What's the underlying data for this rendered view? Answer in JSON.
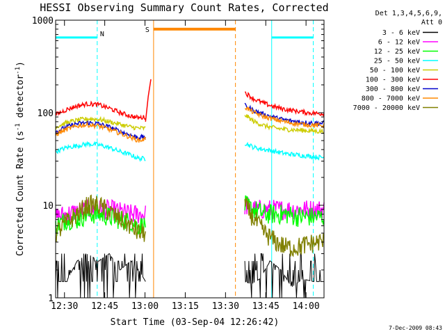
{
  "chart_data": {
    "type": "line",
    "title": "HESSI Observing Summary Count Rates, Corrected",
    "xlabel": "Start Time (03-Sep-04 12:26:42)",
    "ylabel_prefix": "Corrected Count Rate (s",
    "ylabel_sup1": "-1",
    "ylabel_mid": " detector",
    "ylabel_sup2": "-1",
    "ylabel_suffix": ")",
    "y_scale": "log",
    "ylim": [
      1,
      1000
    ],
    "xlim_minutes": [
      0,
      100
    ],
    "x_ticks": [
      {
        "label": "12:30",
        "minute": 3.3
      },
      {
        "label": "12:45",
        "minute": 18.3
      },
      {
        "label": "13:00",
        "minute": 33.3
      },
      {
        "label": "13:15",
        "minute": 48.3
      },
      {
        "label": "13:30",
        "minute": 63.3
      },
      {
        "label": "13:45",
        "minute": 78.3
      },
      {
        "label": "14:00",
        "minute": 93.3
      }
    ],
    "y_ticks": [
      {
        "label": "1",
        "value": 1
      },
      {
        "label": "10",
        "value": 10
      },
      {
        "label": "100",
        "value": 100
      },
      {
        "label": "1000",
        "value": 1000
      }
    ],
    "legend_header": [
      "Det 1,3,4,5,6,9,",
      "Att 0"
    ],
    "series": [
      {
        "name": "3 - 6 keV",
        "color": "#000000",
        "seg1": {
          "x": [
            0,
            4,
            8,
            12,
            16,
            20,
            24,
            28,
            31,
            33.5
          ],
          "y": [
            1.5,
            1.5,
            2.5,
            3,
            2.5,
            3,
            2,
            2.5,
            2,
            1.5
          ]
        },
        "seg2": {
          "x": [
            70.5,
            73,
            76,
            80,
            84,
            88,
            92,
            96,
            100
          ],
          "y": [
            1.5,
            1.4,
            1.6,
            2.5,
            2,
            1.3,
            1.6,
            1.5,
            1.5
          ]
        }
      },
      {
        "name": "6 - 12 keV",
        "color": "#ff00ff",
        "seg1": {
          "x": [
            0,
            4,
            8,
            12,
            16,
            20,
            24,
            28,
            31,
            33.5
          ],
          "y": [
            7.5,
            8,
            8.5,
            9,
            9,
            9,
            8.5,
            8,
            8,
            8
          ]
        },
        "seg2": {
          "x": [
            70.5,
            74,
            78,
            82,
            86,
            90,
            94,
            98,
            100
          ],
          "y": [
            10,
            9,
            9,
            9,
            9,
            9,
            9,
            9,
            9
          ]
        }
      },
      {
        "name": "12 - 25 keV",
        "color": "#00ff00",
        "seg1": {
          "x": [
            0,
            4,
            8,
            12,
            16,
            20,
            24,
            28,
            31,
            33.5
          ],
          "y": [
            6,
            7,
            7,
            8,
            8,
            7.5,
            7,
            6.5,
            6,
            6
          ]
        },
        "seg2": {
          "x": [
            70.5,
            74,
            78,
            82,
            86,
            90,
            94,
            98,
            100
          ],
          "y": [
            10,
            9,
            8,
            8,
            8,
            7.5,
            7.5,
            7.5,
            7.5
          ]
        }
      },
      {
        "name": "25 - 50 keV",
        "color": "#00ffff",
        "seg1": {
          "x": [
            0,
            4,
            8,
            12,
            16,
            20,
            24,
            28,
            31,
            33.5
          ],
          "y": [
            38,
            42,
            44,
            46,
            45,
            42,
            38,
            35,
            32,
            32
          ]
        },
        "seg2": {
          "x": [
            70.5,
            74,
            78,
            82,
            86,
            90,
            94,
            98,
            100
          ],
          "y": [
            47,
            42,
            40,
            38,
            36,
            35,
            34,
            33,
            33
          ]
        }
      },
      {
        "name": "50 - 100 keV",
        "color": "#cccc00",
        "seg1": {
          "x": [
            0,
            4,
            8,
            12,
            16,
            20,
            24,
            28,
            31,
            33.5
          ],
          "y": [
            70,
            78,
            83,
            86,
            85,
            80,
            75,
            70,
            68,
            68
          ]
        },
        "seg2": {
          "x": [
            70.5,
            74,
            78,
            82,
            86,
            90,
            94,
            98,
            100
          ],
          "y": [
            95,
            80,
            72,
            68,
            66,
            65,
            64,
            63,
            63
          ]
        }
      },
      {
        "name": "100 - 300 keV",
        "color": "#ff0000",
        "seg1": {
          "x": [
            0,
            4,
            8,
            12,
            16,
            20,
            24,
            28,
            31,
            33.5
          ],
          "y": [
            95,
            108,
            118,
            125,
            122,
            112,
            100,
            92,
            88,
            90
          ]
        },
        "seg2": {
          "x": [
            70.5,
            74,
            78,
            82,
            86,
            90,
            94,
            98,
            100
          ],
          "y": [
            165,
            140,
            125,
            115,
            108,
            104,
            100,
            98,
            98
          ]
        }
      },
      {
        "name": "300 - 800 keV",
        "color": "#0000cc",
        "seg1": {
          "x": [
            0,
            4,
            8,
            12,
            16,
            20,
            24,
            28,
            31,
            33.5
          ],
          "y": [
            62,
            70,
            76,
            78,
            76,
            70,
            63,
            57,
            54,
            55
          ]
        },
        "seg2": {
          "x": [
            70.5,
            74,
            78,
            82,
            86,
            90,
            94,
            98,
            100
          ],
          "y": [
            120,
            105,
            95,
            88,
            83,
            80,
            78,
            77,
            77
          ]
        }
      },
      {
        "name": "800 - 7000 keV",
        "color": "#ff8800",
        "seg1": {
          "x": [
            0,
            4,
            8,
            12,
            16,
            20,
            24,
            28,
            31,
            33.5
          ],
          "y": [
            58,
            66,
            72,
            74,
            72,
            66,
            60,
            54,
            50,
            52
          ]
        },
        "seg2": {
          "x": [
            70.5,
            74,
            78,
            82,
            86,
            90,
            94,
            98,
            100
          ],
          "y": [
            115,
            100,
            90,
            84,
            79,
            76,
            74,
            73,
            73
          ]
        }
      },
      {
        "name": "7000 - 20000 keV",
        "color": "#808000",
        "seg1": {
          "x": [
            0,
            4,
            8,
            12,
            16,
            20,
            24,
            28,
            31,
            33.5
          ],
          "y": [
            5,
            6.5,
            8,
            10,
            10,
            8.5,
            7,
            6,
            5,
            5
          ]
        },
        "seg2": {
          "x": [
            70.5,
            74,
            78,
            82,
            86,
            90,
            94,
            98,
            100
          ],
          "y": [
            10,
            7,
            5,
            4,
            3.5,
            3.5,
            3.8,
            4,
            4
          ]
        }
      }
    ],
    "flare_spike": {
      "x": [
        33.5,
        34.5,
        35.5
      ],
      "y": [
        80,
        150,
        230
      ],
      "color": "#ff0000"
    },
    "annotations": {
      "N": {
        "label": "N",
        "color": "#00ffff",
        "x_min": 0,
        "x_max": 15.5,
        "y": 650,
        "line_x": 15.5,
        "line_style": "dashed"
      },
      "S": {
        "label": "S",
        "color": "#ff8800",
        "x_min": 36.5,
        "x_max": 67,
        "y": 800,
        "line_left_x": 36.5,
        "line_right_x": 67,
        "left_style": "solid",
        "right_style": "dashed"
      },
      "N2": {
        "color": "#00ffff",
        "x_min": 80.5,
        "x_max": 96,
        "y": 650,
        "line_left_x": 80.5,
        "line_right_x": 96,
        "left_style": "solid",
        "right_style": "dashed"
      }
    },
    "grid": false,
    "legend_position": "right"
  },
  "footer_date": "7-Dec-2009 08:43"
}
